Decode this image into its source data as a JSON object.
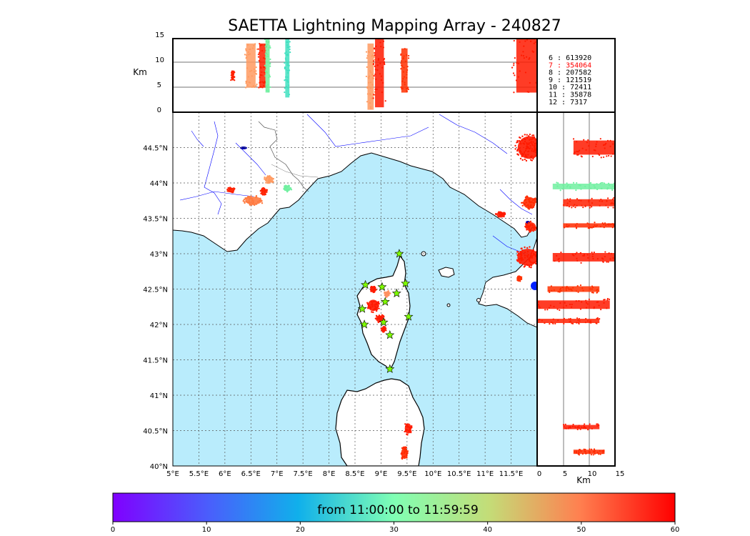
{
  "figure": {
    "title": "SAETTA Lightning Mapping Array - 240827"
  },
  "top_panel": {
    "ylabel": "Km",
    "yticks": [
      "15",
      "10",
      "5",
      "0"
    ]
  },
  "side_panel": {
    "xlabel": "Km",
    "xticks": [
      "0",
      "5",
      "10",
      "15"
    ]
  },
  "map": {
    "lon_ticks": [
      "5°E",
      "5.5°E",
      "6°E",
      "6.5°E",
      "7°E",
      "7.5°E",
      "8°E",
      "8.5°E",
      "9°E",
      "9.5°E",
      "10°E",
      "10.5°E",
      "11°E",
      "11.5°E"
    ],
    "lat_ticks": [
      "44.5°N",
      "44°N",
      "43.5°N",
      "43°N",
      "42.5°N",
      "42°N",
      "41.5°N",
      "41°N",
      "40.5°N",
      "40°N"
    ],
    "lon_range": [
      5,
      12
    ],
    "lat_range": [
      40,
      45
    ],
    "sea_color": "#b9ecfc",
    "land_color": "#ffffff",
    "river_color": "#0000ff",
    "station_marker": "star-icon",
    "station_color": "#7fff00",
    "stations": [
      {
        "lon": 9.35,
        "lat": 43.0
      },
      {
        "lon": 8.7,
        "lat": 42.56
      },
      {
        "lon": 9.02,
        "lat": 42.53
      },
      {
        "lon": 9.47,
        "lat": 42.58
      },
      {
        "lon": 9.3,
        "lat": 42.44
      },
      {
        "lon": 9.08,
        "lat": 42.32
      },
      {
        "lon": 8.64,
        "lat": 42.22
      },
      {
        "lon": 9.53,
        "lat": 42.11
      },
      {
        "lon": 8.68,
        "lat": 42.0
      },
      {
        "lon": 9.05,
        "lat": 42.03
      },
      {
        "lon": 9.17,
        "lat": 41.85
      },
      {
        "lon": 9.17,
        "lat": 41.37
      }
    ],
    "clusters": [
      {
        "lon": 6.12,
        "lat": 43.9,
        "rlon": 0.08,
        "rlat": 0.04,
        "color": "#ff2000"
      },
      {
        "lon": 6.55,
        "lat": 43.75,
        "rlon": 0.2,
        "rlat": 0.07,
        "color": "#ff7a40"
      },
      {
        "lon": 6.85,
        "lat": 44.05,
        "rlon": 0.1,
        "rlat": 0.06,
        "color": "#ff9a60"
      },
      {
        "lon": 6.75,
        "lat": 43.88,
        "rlon": 0.07,
        "rlat": 0.05,
        "color": "#ff2000"
      },
      {
        "lon": 7.2,
        "lat": 43.92,
        "rlon": 0.08,
        "rlat": 0.05,
        "color": "#70f0a0"
      },
      {
        "lon": 11.85,
        "lat": 44.5,
        "rlon": 0.28,
        "rlat": 0.2,
        "color": "#ff1a00"
      },
      {
        "lon": 11.85,
        "lat": 43.72,
        "rlon": 0.15,
        "rlat": 0.1,
        "color": "#ff2a00"
      },
      {
        "lon": 11.3,
        "lat": 43.55,
        "rlon": 0.1,
        "rlat": 0.05,
        "color": "#ff1a00"
      },
      {
        "lon": 11.88,
        "lat": 43.38,
        "rlon": 0.12,
        "rlat": 0.08,
        "color": "#ff2000"
      },
      {
        "lon": 11.82,
        "lat": 42.95,
        "rlon": 0.25,
        "rlat": 0.15,
        "color": "#ff1a00"
      },
      {
        "lon": 11.66,
        "lat": 42.65,
        "rlon": 0.05,
        "rlat": 0.04,
        "color": "#ff3000"
      },
      {
        "lon": 8.85,
        "lat": 42.5,
        "rlon": 0.06,
        "rlat": 0.05,
        "color": "#ff1a00"
      },
      {
        "lon": 9.12,
        "lat": 42.43,
        "rlon": 0.06,
        "rlat": 0.05,
        "color": "#ff9060"
      },
      {
        "lon": 8.85,
        "lat": 42.27,
        "rlon": 0.13,
        "rlat": 0.1,
        "color": "#ff1a00"
      },
      {
        "lon": 8.98,
        "lat": 42.08,
        "rlon": 0.1,
        "rlat": 0.06,
        "color": "#ff1a00"
      },
      {
        "lon": 9.05,
        "lat": 41.93,
        "rlon": 0.05,
        "rlat": 0.04,
        "color": "#ff1a00"
      },
      {
        "lon": 9.52,
        "lat": 40.53,
        "rlon": 0.08,
        "rlat": 0.09,
        "color": "#ff1a00"
      },
      {
        "lon": 9.45,
        "lat": 40.18,
        "rlon": 0.08,
        "rlat": 0.1,
        "color": "#ff2a00"
      }
    ]
  },
  "legend": {
    "entries": [
      {
        "label": "6  :   613920",
        "color": "#000000"
      },
      {
        "label": "7  :   354064",
        "color": "#ff0000"
      },
      {
        "label": "8  :   207582",
        "color": "#000000"
      },
      {
        "label": "9  :   121519",
        "color": "#000000"
      },
      {
        "label": "10 :    72411",
        "color": "#000000"
      },
      {
        "label": "11 :    35878",
        "color": "#000000"
      },
      {
        "label": "12 :     7317",
        "color": "#000000"
      }
    ]
  },
  "colorbar": {
    "label": "from 11:00:00 to 11:59:59",
    "ticks": [
      "0",
      "10",
      "20",
      "30",
      "40",
      "50",
      "60"
    ],
    "range": [
      0,
      60
    ],
    "colormap": "rainbow"
  }
}
